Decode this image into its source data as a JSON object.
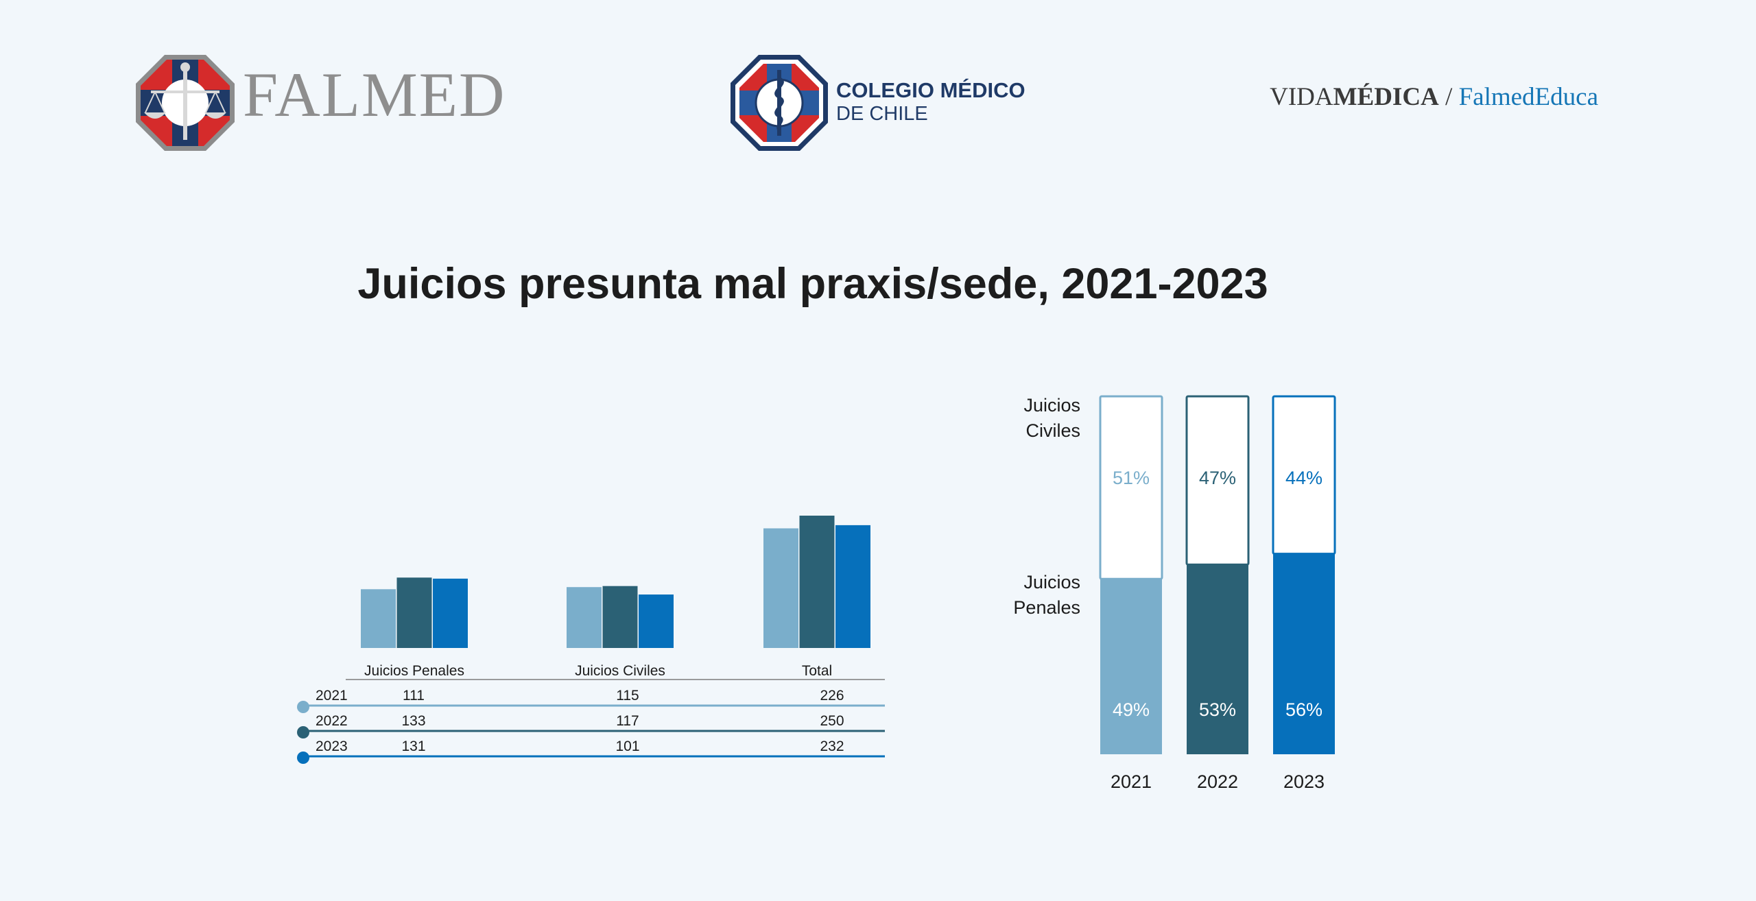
{
  "header": {
    "falmed_logo_text": "FALMED",
    "colegio_line1": "COLEGIO MÉDICO",
    "colegio_line2": "DE CHILE",
    "vida_part1": "VIDA",
    "vida_part2": "MÉDICA",
    "vida_separator": " / ",
    "vida_part3": "FalmedEduca"
  },
  "colors": {
    "2021": "#7aaecb",
    "2022": "#2b6175",
    "2023": "#0670bb",
    "background": "#f2f7fb",
    "falmed_red": "#d52b2b",
    "navy": "#1f3a67"
  },
  "chart_data": [
    {
      "type": "bar",
      "categories": [
        "Juicios Penales",
        "Juicios Civiles",
        "Total"
      ],
      "series": [
        {
          "name": "2021",
          "values": [
            111,
            115,
            226
          ]
        },
        {
          "name": "2022",
          "values": [
            133,
            117,
            250
          ]
        },
        {
          "name": "2023",
          "values": [
            131,
            101,
            232
          ]
        }
      ],
      "table": {
        "rows": [
          {
            "year": "2021",
            "values": [
              "111",
              "115",
              "226"
            ]
          },
          {
            "year": "2022",
            "values": [
              "133",
              "117",
              "250"
            ]
          },
          {
            "year": "2023",
            "values": [
              "131",
              "101",
              "232"
            ]
          }
        ]
      },
      "ylim": [
        0,
        250
      ],
      "legend": "data table below bars",
      "grid": false
    },
    {
      "type": "bar",
      "stacked": "100%",
      "title": "Juicios presunta mal praxis/sede, 2021-2023",
      "categories": [
        "2021",
        "2022",
        "2023"
      ],
      "series": [
        {
          "name": "Juicios Penales",
          "values": [
            49,
            53,
            56
          ],
          "labels": [
            "49%",
            "53%",
            "56%"
          ]
        },
        {
          "name": "Juicios Civiles",
          "values": [
            51,
            47,
            44
          ],
          "labels": [
            "51%",
            "47%",
            "44%"
          ]
        }
      ],
      "series_labels": {
        "civiles": [
          "Juicios",
          "Civiles"
        ],
        "penales": [
          "Juicios",
          "Penales"
        ]
      },
      "ylim": [
        0,
        100
      ],
      "legend": "left side labels",
      "grid": false
    }
  ]
}
